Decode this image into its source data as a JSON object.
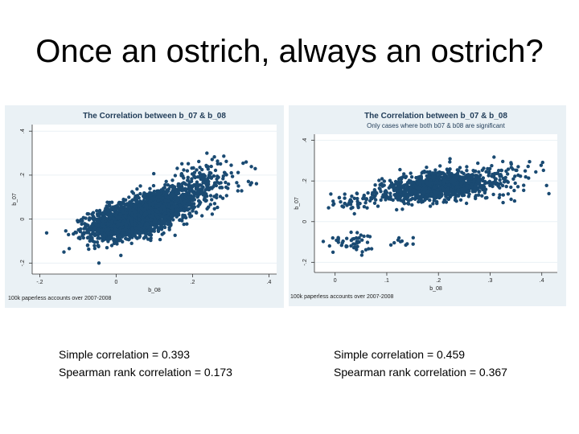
{
  "slide": {
    "title": "Once an ostrich, always an ostrich?",
    "stats_left": {
      "simple": "Simple correlation = 0.393",
      "spearman": "Spearman rank correlation = 0.173"
    },
    "stats_right": {
      "simple": "Simple correlation = 0.459",
      "spearman": "Spearman rank correlation = 0.367"
    }
  },
  "colors": {
    "panel_background": "#eaf1f5",
    "plot_background": "#ffffff",
    "marker": "#1a4a72",
    "title_text": "#1f3b57"
  },
  "chart_data": [
    {
      "type": "scatter",
      "title": "The Correlation between b_07 & b_08",
      "subtitle": "",
      "xlabel": "b_08",
      "ylabel": "b_07",
      "note": "100k paperless accounts over 2007-2008",
      "xlim": [
        -0.22,
        0.42
      ],
      "ylim": [
        -0.25,
        0.43
      ],
      "xticks": [
        -0.2,
        0,
        0.2,
        0.4
      ],
      "xtick_labels": [
        "-.2",
        "0",
        ".2",
        ".4"
      ],
      "yticks": [
        -0.2,
        0,
        0.2,
        0.4
      ],
      "ytick_labels": [
        "-.2",
        "0",
        ".2",
        ".4"
      ],
      "grid": "horizontal",
      "clusters": [
        {
          "cx": 0.04,
          "cy": 0.0,
          "sx": 0.055,
          "sy": 0.045,
          "rho": 0.45,
          "n": 1800
        },
        {
          "cx": 0.12,
          "cy": 0.06,
          "sx": 0.05,
          "sy": 0.05,
          "rho": 0.5,
          "n": 700
        },
        {
          "cx": 0.22,
          "cy": 0.15,
          "sx": 0.06,
          "sy": 0.06,
          "rho": 0.35,
          "n": 220
        }
      ]
    },
    {
      "type": "scatter",
      "title": "The Correlation between b_07 & b_08",
      "subtitle": "Only cases where both b07 & b08 are significant",
      "xlabel": "b_08",
      "ylabel": "b_07",
      "note": "100k paperless accounts over 2007-2008",
      "xlim": [
        -0.04,
        0.43
      ],
      "ylim": [
        -0.25,
        0.43
      ],
      "xticks": [
        0,
        0.1,
        0.2,
        0.3,
        0.4
      ],
      "xtick_labels": [
        "0",
        ".1",
        ".2",
        ".3",
        ".4"
      ],
      "yticks": [
        -0.2,
        0,
        0.2,
        0.4
      ],
      "ytick_labels": [
        "-.2",
        "0",
        ".2",
        ".4"
      ],
      "grid": "horizontal",
      "clusters": [
        {
          "cx": 0.19,
          "cy": 0.17,
          "sx": 0.05,
          "sy": 0.035,
          "rho": 0.35,
          "n": 900
        },
        {
          "cx": 0.28,
          "cy": 0.2,
          "sx": 0.06,
          "sy": 0.045,
          "rho": 0.2,
          "n": 200
        },
        {
          "cx": 0.03,
          "cy": 0.1,
          "sx": 0.018,
          "sy": 0.02,
          "rho": 0.0,
          "n": 45
        },
        {
          "cx": 0.03,
          "cy": -0.1,
          "sx": 0.018,
          "sy": 0.02,
          "rho": 0.0,
          "n": 45
        },
        {
          "cx": 0.13,
          "cy": -0.1,
          "sx": 0.015,
          "sy": 0.015,
          "rho": 0.0,
          "n": 10
        }
      ]
    }
  ]
}
